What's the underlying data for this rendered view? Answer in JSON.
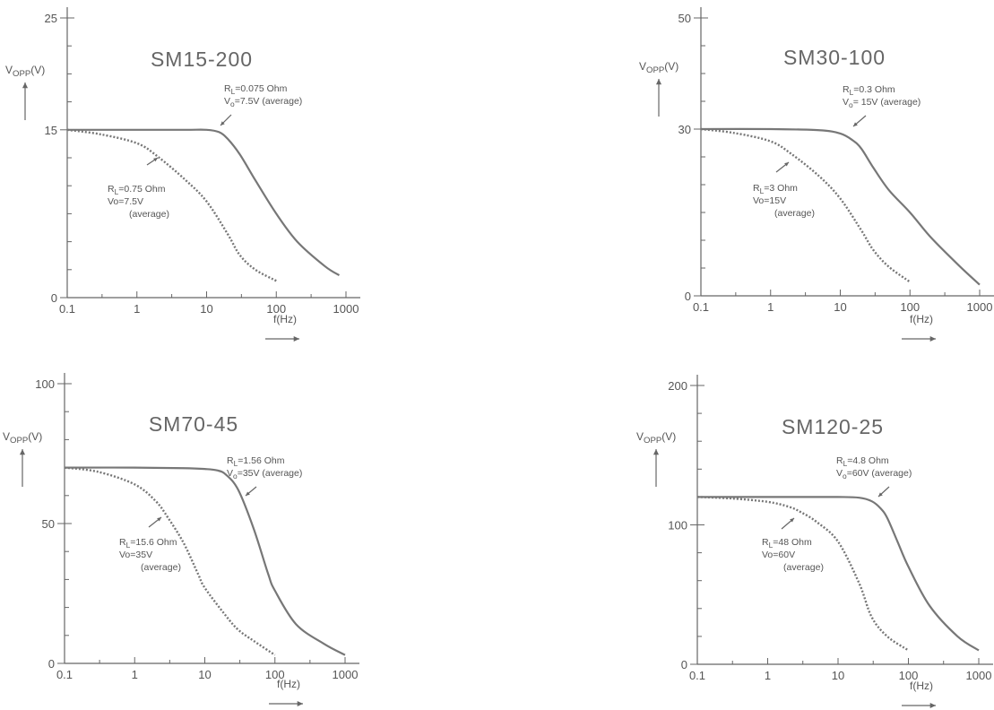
{
  "chart_data": [
    {
      "type": "line",
      "title": "SM15-200",
      "xlabel": "f(Hz)",
      "ylabel": "V_OPP(V)",
      "xscale": "log",
      "xlim": [
        0.1,
        1000
      ],
      "ylim": [
        0,
        25
      ],
      "x_ticks": [
        "0.1",
        "1",
        "10",
        "100",
        "1000"
      ],
      "y_ticks": [
        "0",
        "15",
        "25"
      ],
      "series": [
        {
          "style": "solid",
          "x": [
            0.1,
            1,
            5,
            10,
            15,
            20,
            30,
            50,
            100,
            200,
            500,
            800
          ],
          "y": [
            15,
            15,
            15,
            15,
            14.8,
            14.2,
            12.8,
            10.5,
            7.5,
            5.0,
            2.8,
            2.0
          ]
        },
        {
          "style": "dotted",
          "x": [
            0.1,
            0.3,
            1,
            2,
            5,
            10,
            20,
            30,
            50,
            100
          ],
          "y": [
            15,
            14.6,
            13.8,
            12.6,
            10.5,
            8.6,
            5.7,
            3.8,
            2.5,
            1.5
          ]
        }
      ],
      "annotations": [
        {
          "lines": [
            "R_L=0.075 Ohm",
            "V_o=7.5V (average)"
          ]
        },
        {
          "lines": [
            "R_L=0.75 Ohm",
            "Vo=7.5V",
            "(average)"
          ]
        }
      ]
    },
    {
      "type": "line",
      "title": "SM30-100",
      "xlabel": "f(Hz)",
      "ylabel": "V_OPP(V)",
      "xscale": "log",
      "xlim": [
        0.1,
        1000
      ],
      "ylim": [
        0,
        50
      ],
      "x_ticks": [
        "0.1",
        "1",
        "10",
        "100",
        "1000"
      ],
      "y_ticks": [
        "0",
        "30",
        "50"
      ],
      "series": [
        {
          "style": "solid",
          "x": [
            0.1,
            1,
            5,
            10,
            15,
            20,
            30,
            50,
            100,
            200,
            500,
            1000
          ],
          "y": [
            30,
            30,
            29.8,
            29.2,
            28.0,
            26.5,
            23.0,
            19.0,
            15.0,
            10.5,
            5.5,
            2.0
          ]
        },
        {
          "style": "dotted",
          "x": [
            0.1,
            0.3,
            1,
            2,
            5,
            10,
            20,
            30,
            50,
            100
          ],
          "y": [
            30,
            29.3,
            27.8,
            25.5,
            21.5,
            17.5,
            11.8,
            8.2,
            5.2,
            2.5
          ]
        }
      ],
      "annotations": [
        {
          "lines": [
            "R_L=0.3 Ohm",
            "V_o= 15V (average)"
          ]
        },
        {
          "lines": [
            "R_L=3 Ohm",
            "Vo=15V",
            "(average)"
          ]
        }
      ]
    },
    {
      "type": "line",
      "title": "SM70-45",
      "xlabel": "f(Hz)",
      "ylabel": "V_OPP(V)",
      "xscale": "log",
      "xlim": [
        0.1,
        1000
      ],
      "ylim": [
        0,
        100
      ],
      "x_ticks": [
        "0.1",
        "1",
        "10",
        "100",
        "1000"
      ],
      "y_ticks": [
        "0",
        "50",
        "100"
      ],
      "series": [
        {
          "style": "solid",
          "x": [
            0.1,
            1,
            5,
            10,
            15,
            20,
            30,
            50,
            80,
            100,
            200,
            500,
            1000
          ],
          "y": [
            70,
            70,
            69.8,
            69.5,
            69.0,
            67.5,
            62.0,
            48.0,
            32.0,
            26.0,
            14.0,
            7.0,
            3.0
          ]
        },
        {
          "style": "dotted",
          "x": [
            0.1,
            0.3,
            1,
            2,
            3,
            5,
            8,
            10,
            20,
            30,
            50,
            100
          ],
          "y": [
            70,
            68.5,
            64.0,
            58.0,
            52.0,
            43.0,
            32.0,
            27.0,
            17.0,
            12.0,
            8.0,
            3.0
          ]
        }
      ],
      "annotations": [
        {
          "lines": [
            "R_L=1.56 Ohm",
            "V_o=35V (average)"
          ]
        },
        {
          "lines": [
            "R_L=15.6 Ohm",
            "Vo=35V",
            "(average)"
          ]
        }
      ]
    },
    {
      "type": "line",
      "title": "SM120-25",
      "xlabel": "f(Hz)",
      "ylabel": "V_OPP(V)",
      "xscale": "log",
      "xlim": [
        0.1,
        1000
      ],
      "ylim": [
        0,
        200
      ],
      "x_ticks": [
        "0.1",
        "1",
        "10",
        "100",
        "1000"
      ],
      "y_ticks": [
        "0",
        "100",
        "200"
      ],
      "series": [
        {
          "style": "solid",
          "x": [
            0.1,
            1,
            10,
            20,
            30,
            40,
            50,
            70,
            100,
            200,
            500,
            1000
          ],
          "y": [
            120,
            120,
            120,
            119.5,
            117,
            112,
            105,
            88,
            70,
            42,
            20,
            10
          ]
        },
        {
          "style": "dotted",
          "x": [
            0.1,
            0.3,
            1,
            2,
            3,
            5,
            10,
            20,
            30,
            50,
            100
          ],
          "y": [
            120,
            119,
            116.5,
            113,
            109,
            102,
            88,
            58,
            34,
            20,
            10
          ]
        }
      ],
      "annotations": [
        {
          "lines": [
            "R_L=4.8 Ohm",
            "V_o=60V (average)"
          ]
        },
        {
          "lines": [
            "R_L=48 Ohm",
            "Vo=60V",
            "(average)"
          ]
        }
      ]
    }
  ]
}
